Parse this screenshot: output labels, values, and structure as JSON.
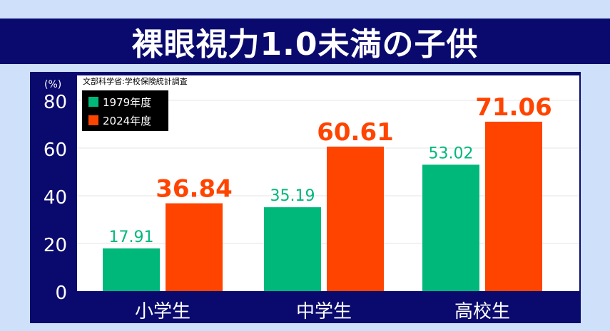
{
  "title": "裸眼視力1.0未満の子供",
  "colors": {
    "background": "#cfe0fb",
    "navy": "#0a0a6e",
    "plot_bg": "#ffffff",
    "series_1979": "#00b87a",
    "series_2024": "#ff4400",
    "gridline": "#e6e6e6"
  },
  "chart_data": {
    "type": "bar",
    "source": "文部科学省:学校保険統計調査",
    "ylabel": "(%)",
    "ylim": [
      0,
      80
    ],
    "yticks": [
      "0",
      "20",
      "40",
      "60",
      "80"
    ],
    "ytick_values": [
      0,
      20,
      40,
      60,
      80
    ],
    "categories": [
      "小学生",
      "中学生",
      "高校生"
    ],
    "series": [
      {
        "name": "1979年度",
        "values": [
          17.91,
          35.19,
          53.02
        ],
        "labels": [
          "17.91",
          "35.19",
          "53.02"
        ]
      },
      {
        "name": "2024年度",
        "values": [
          36.84,
          60.61,
          71.06
        ],
        "labels": [
          "36.84",
          "60.61",
          "71.06"
        ]
      }
    ],
    "grid": true,
    "legend_position": "top-left"
  }
}
